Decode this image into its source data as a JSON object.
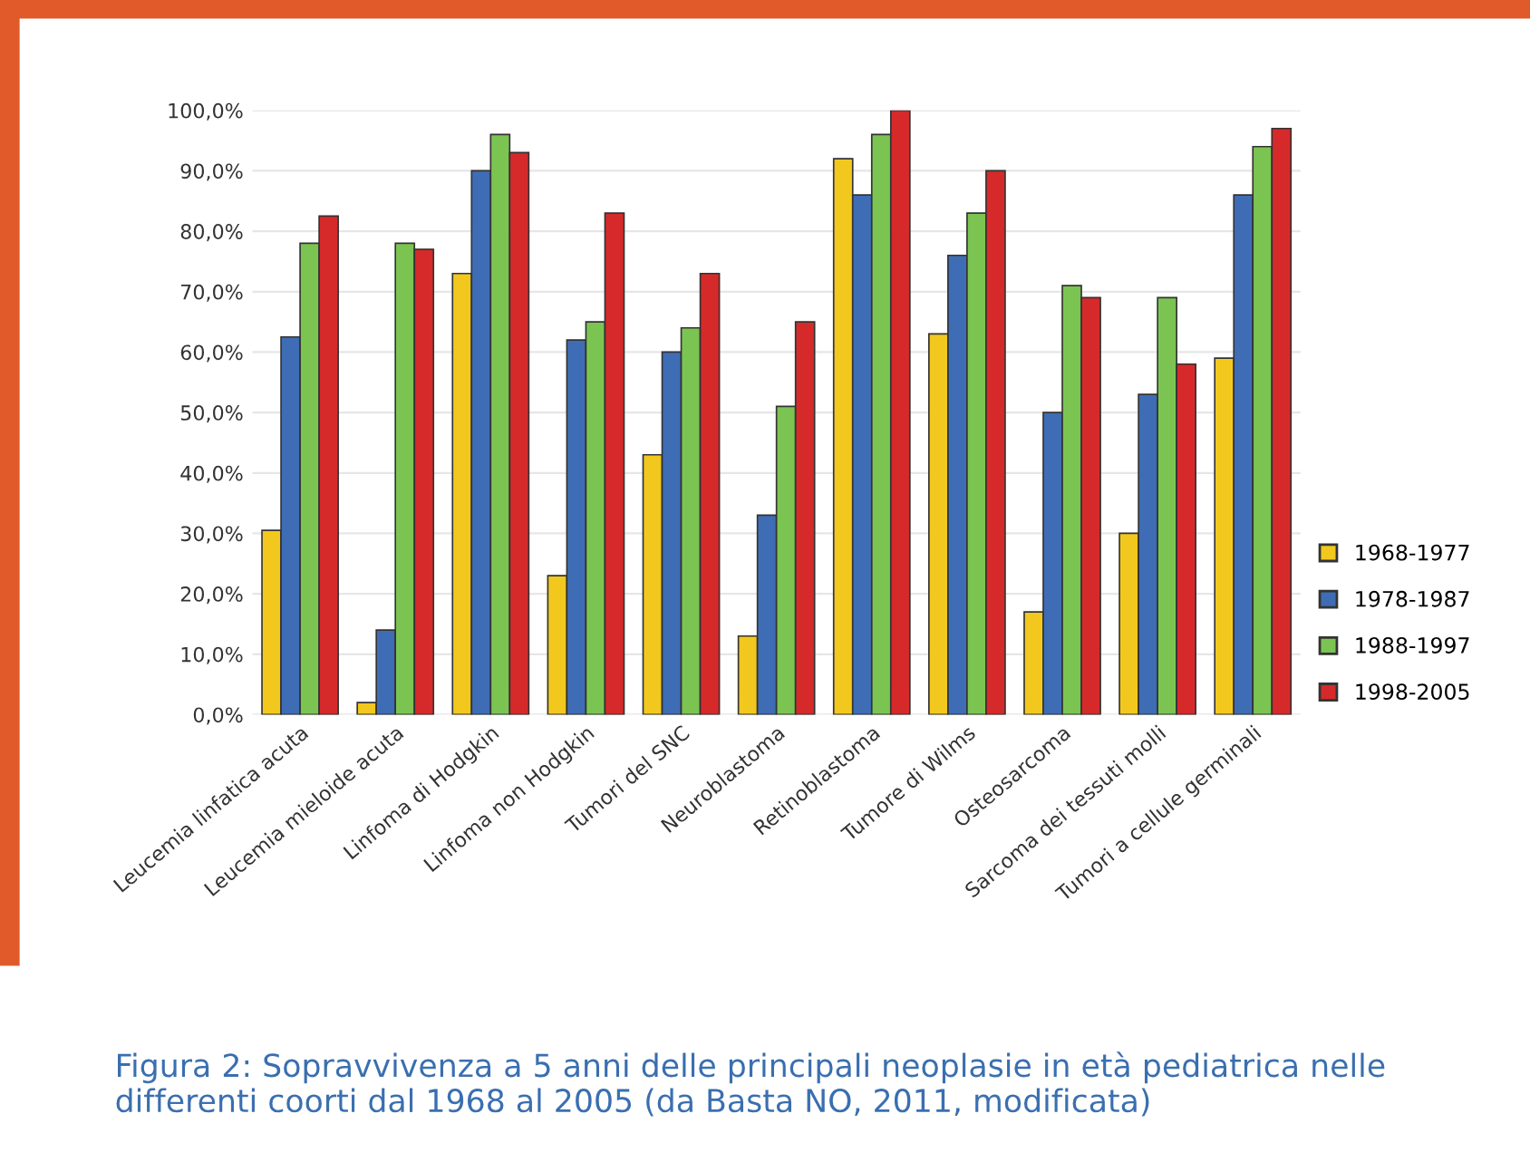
{
  "chart_data": {
    "type": "bar",
    "categories": [
      "Leucemia linfatica acuta",
      "Leucemia mieloide acuta",
      "Linfoma di Hodgkin",
      "Linfoma non Hodgkin",
      "Tumori del SNC",
      "Neuroblastoma",
      "Retinoblastoma",
      "Tumore di Wilms",
      "Osteosarcoma",
      "Sarcoma dei tessuti molli",
      "Tumori a cellule germinali"
    ],
    "series": [
      {
        "name": "1968-1977",
        "color": "#f2c81e",
        "values": [
          30.5,
          2,
          73,
          23,
          43,
          13,
          92,
          63,
          17,
          30,
          59
        ]
      },
      {
        "name": "1978-1987",
        "color": "#3f6db5",
        "values": [
          62.5,
          14,
          90,
          62,
          60,
          33,
          86,
          76,
          50,
          53,
          86
        ]
      },
      {
        "name": "1988-1997",
        "color": "#7cc452",
        "values": [
          78,
          78,
          96,
          65,
          64,
          51,
          96,
          83,
          71,
          69,
          94
        ]
      },
      {
        "name": "1998-2005",
        "color": "#d62a2a",
        "values": [
          82.5,
          77,
          93,
          83,
          73,
          65,
          100,
          90,
          69,
          58,
          97
        ]
      }
    ],
    "ylim": [
      0,
      100
    ],
    "yticks": [
      {
        "value": 0,
        "label": "0,0%"
      },
      {
        "value": 10,
        "label": "10,0%"
      },
      {
        "value": 20,
        "label": "20,0%"
      },
      {
        "value": 30,
        "label": "30,0%"
      },
      {
        "value": 40,
        "label": "40,0%"
      },
      {
        "value": 50,
        "label": "50,0%"
      },
      {
        "value": 60,
        "label": "60,0%"
      },
      {
        "value": 70,
        "label": "70,0%"
      },
      {
        "value": 80,
        "label": "80,0%"
      },
      {
        "value": 90,
        "label": "90,0%"
      },
      {
        "value": 100,
        "label": "100,0%"
      }
    ],
    "grid": "y",
    "legend": "right",
    "annotations": [
      "Figura 2: Sopravvivenza a 5 anni delle principali neoplasie in età pediatrica nelle differenti coorti dal 1968 al 2005 (da Basta NO, 2011, modificata)"
    ]
  }
}
